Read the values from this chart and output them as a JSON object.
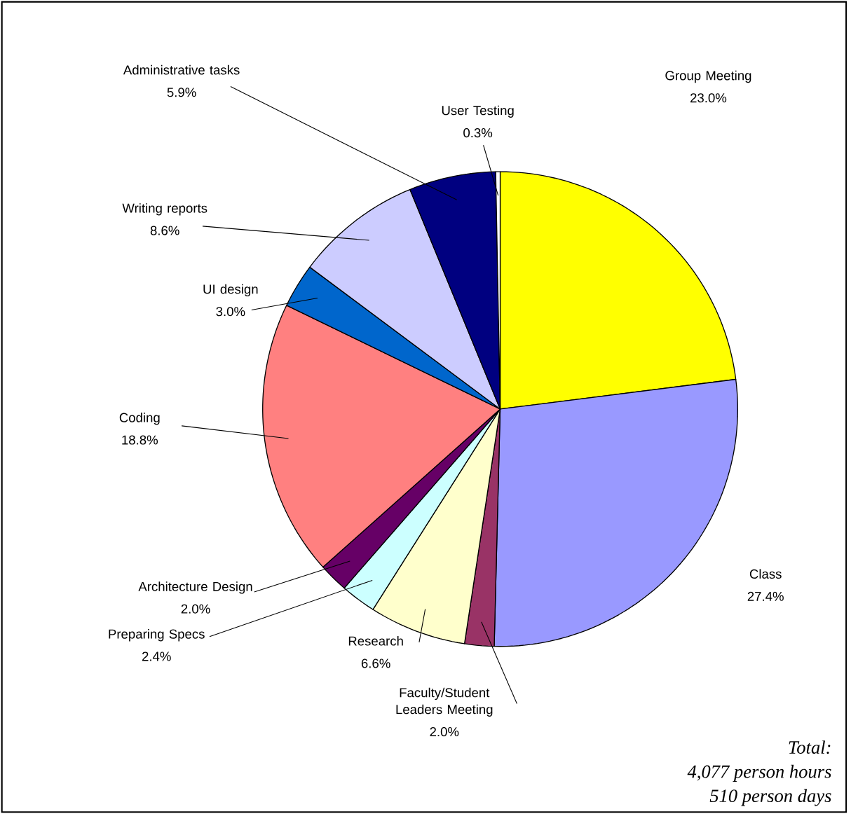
{
  "chart_data": {
    "type": "pie",
    "categories": [
      "Group Meeting",
      "Class",
      "Faculty/Student Leaders Meeting",
      "Research",
      "Preparing Specs",
      "Architecture Design",
      "Coding",
      "UI design",
      "Writing reports",
      "Administrative tasks",
      "User Testing"
    ],
    "values": [
      23.0,
      27.4,
      2.0,
      6.6,
      2.4,
      2.0,
      18.8,
      3.0,
      8.6,
      5.9,
      0.3
    ],
    "value_labels": [
      "23.0%",
      "27.4%",
      "2.0%",
      "6.6%",
      "2.4%",
      "2.0%",
      "18.8%",
      "3.0%",
      "8.6%",
      "5.9%",
      "0.3%"
    ],
    "colors": [
      "#ffff00",
      "#9999ff",
      "#993366",
      "#ffffcc",
      "#ccffff",
      "#660066",
      "#ff8080",
      "#0066cc",
      "#ccccff",
      "#000080",
      "#ffffff"
    ],
    "annotations": [
      "Total:",
      "4,077 person hours",
      "510 person days"
    ]
  }
}
